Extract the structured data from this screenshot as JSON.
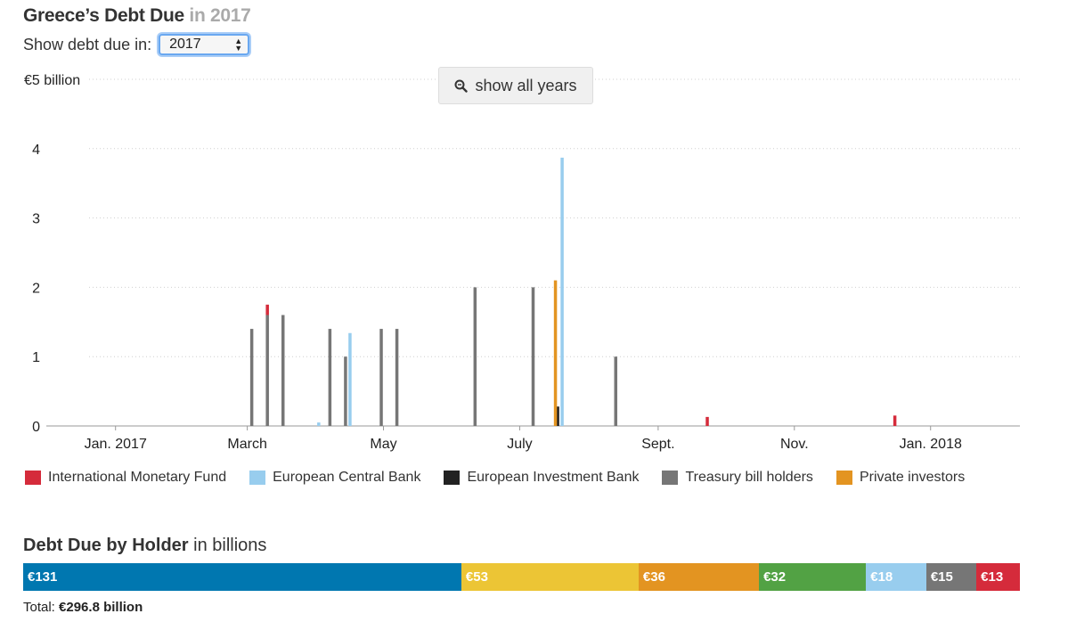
{
  "header": {
    "title": "Greece’s Debt Due",
    "title_suffix": "in 2017",
    "selector_label": "Show debt due in:",
    "selected_year": "2017",
    "show_all_label": "show all years"
  },
  "chart_data": {
    "type": "bar",
    "stacked": true,
    "ylabel": "€5 billion",
    "ylim": [
      0,
      5
    ],
    "y_ticks": [
      0,
      1,
      2,
      3,
      4,
      5
    ],
    "y_tick_labels": [
      "0",
      "1",
      "2",
      "3",
      "4",
      "€5 billion"
    ],
    "xlim": [
      "2016-12-01",
      "2018-02-10"
    ],
    "x_ticks": [
      {
        "date": "2017-01-01",
        "label": "Jan. 2017"
      },
      {
        "date": "2017-03-01",
        "label": "March"
      },
      {
        "date": "2017-05-01",
        "label": "May"
      },
      {
        "date": "2017-07-01",
        "label": "July"
      },
      {
        "date": "2017-09-01",
        "label": "Sept."
      },
      {
        "date": "2017-11-01",
        "label": "Nov."
      },
      {
        "date": "2018-01-01",
        "label": "Jan. 2018"
      }
    ],
    "grid": true,
    "series": [
      {
        "name": "International Monetary Fund",
        "color": "#d52b3b",
        "points": [
          [
            "2017-03-10",
            0.15
          ],
          [
            "2017-09-23",
            0.13
          ],
          [
            "2017-12-16",
            0.15
          ]
        ]
      },
      {
        "name": "European Central Bank",
        "color": "#98cdee",
        "points": [
          [
            "2017-04-02",
            0.05
          ],
          [
            "2017-04-16",
            1.34
          ],
          [
            "2017-07-20",
            3.87
          ]
        ]
      },
      {
        "name": "European Investment Bank",
        "color": "#222222",
        "points": [
          [
            "2017-07-18",
            0.28
          ]
        ]
      },
      {
        "name": "Treasury bill holders",
        "color": "#767676",
        "points": [
          [
            "2017-03-03",
            1.4
          ],
          [
            "2017-03-10",
            1.6
          ],
          [
            "2017-03-17",
            1.6
          ],
          [
            "2017-04-07",
            1.4
          ],
          [
            "2017-04-14",
            1.0
          ],
          [
            "2017-04-30",
            1.4
          ],
          [
            "2017-05-07",
            1.4
          ],
          [
            "2017-06-11",
            2.0
          ],
          [
            "2017-07-07",
            2.0
          ],
          [
            "2017-08-13",
            1.0
          ]
        ]
      },
      {
        "name": "Private investors",
        "color": "#e39421",
        "points": [
          [
            "2017-07-17",
            2.1
          ]
        ]
      }
    ]
  },
  "holders": {
    "title": "Debt Due by Holder",
    "title_suffix": "in billions",
    "segments": [
      {
        "label": "€131",
        "value": 131,
        "color": "#0077b0"
      },
      {
        "label": "€53",
        "value": 53,
        "color": "#ecc535"
      },
      {
        "label": "€36",
        "value": 36,
        "color": "#e39421"
      },
      {
        "label": "€32",
        "value": 32,
        "color": "#52a244"
      },
      {
        "label": "€18",
        "value": 18,
        "color": "#98cdee"
      },
      {
        "label": "€15",
        "value": 15,
        "color": "#767676"
      },
      {
        "label": "€13",
        "value": 13,
        "color": "#d52b3b"
      }
    ],
    "total_label": "Total:",
    "total_value": "€296.8 billion"
  }
}
